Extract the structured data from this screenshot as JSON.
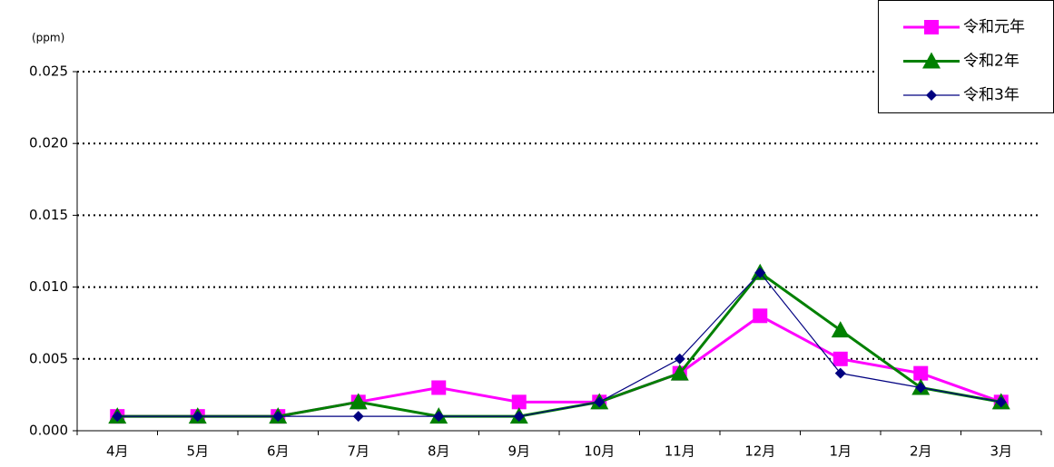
{
  "chart_data": {
    "type": "line",
    "unit_label": "(ppm)",
    "categories": [
      "4月",
      "5月",
      "6月",
      "7月",
      "8月",
      "9月",
      "10月",
      "11月",
      "12月",
      "1月",
      "2月",
      "3月"
    ],
    "series": [
      {
        "name": "令和元年",
        "color": "#ff00ff",
        "marker": "square",
        "values": [
          0.001,
          0.001,
          0.001,
          0.002,
          0.003,
          0.002,
          0.002,
          0.004,
          0.008,
          0.005,
          0.004,
          0.002
        ]
      },
      {
        "name": "令和2年",
        "color": "#008000",
        "marker": "triangle",
        "values": [
          0.001,
          0.001,
          0.001,
          0.002,
          0.001,
          0.001,
          0.002,
          0.004,
          0.011,
          0.007,
          0.003,
          0.002
        ]
      },
      {
        "name": "令和3年",
        "color": "#000080",
        "marker": "diamond",
        "values": [
          0.001,
          0.001,
          0.001,
          0.001,
          0.001,
          0.001,
          0.002,
          0.005,
          0.011,
          0.004,
          0.003,
          0.002
        ]
      }
    ],
    "ylim": [
      0,
      0.025
    ],
    "yticks": [
      {
        "value": 0,
        "label": "0.000"
      },
      {
        "value": 0.005,
        "label": "0.005"
      },
      {
        "value": 0.01,
        "label": "0.010"
      },
      {
        "value": 0.015,
        "label": "0.015"
      },
      {
        "value": 0.02,
        "label": "0.020"
      },
      {
        "value": 0.025,
        "label": "0.025"
      }
    ],
    "grid": true,
    "legend": "top-right"
  }
}
